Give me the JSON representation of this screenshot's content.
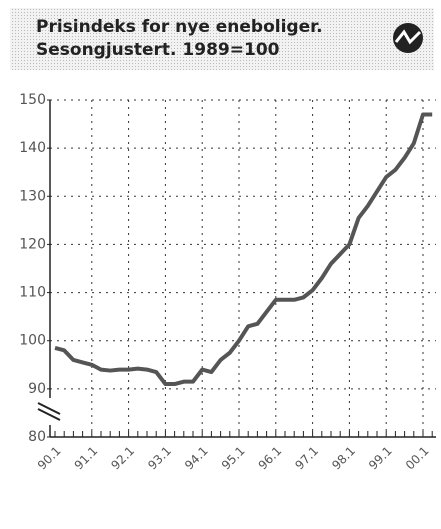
{
  "chart_data": {
    "type": "line",
    "title": "Prisindeks for nye eneboliger.",
    "subtitle": "Sesongjustert. 1989=100",
    "categories": [
      "90.1",
      null,
      null,
      null,
      "91.1",
      null,
      null,
      null,
      "92.1",
      null,
      null,
      null,
      "93.1",
      null,
      null,
      null,
      "94.1",
      null,
      null,
      null,
      "95.1",
      null,
      null,
      null,
      "96.1",
      null,
      null,
      null,
      "97.1",
      null,
      null,
      null,
      "98.1",
      null,
      null,
      null,
      "99.1",
      null,
      null,
      null,
      "00.1",
      null
    ],
    "series": [
      {
        "name": "Prisindeks",
        "color": "#555555",
        "values": [
          98.5,
          98,
          96,
          95.5,
          95,
          94,
          93.8,
          94,
          94,
          94.2,
          94,
          93.5,
          91,
          91,
          91.5,
          91.5,
          94,
          93.5,
          96,
          97.5,
          100,
          103,
          103.5,
          106,
          108.5,
          108.5,
          108.5,
          109,
          110.5,
          113,
          116,
          118,
          120,
          125.5,
          128,
          131,
          134,
          135.5,
          138,
          141,
          147,
          147
        ]
      }
    ],
    "ylim": [
      80,
      150
    ],
    "yticks": [
      80,
      90,
      100,
      110,
      120,
      130,
      140,
      150
    ],
    "grid": true
  }
}
